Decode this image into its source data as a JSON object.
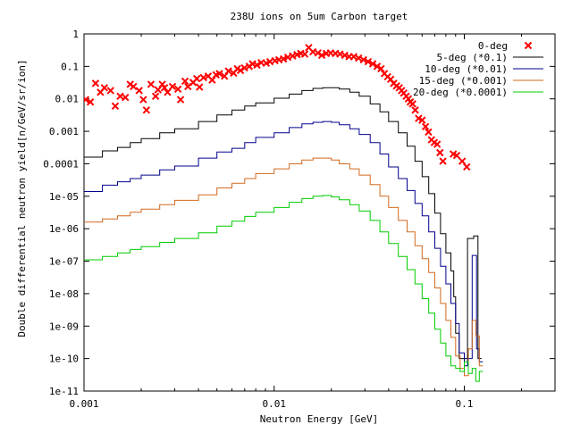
{
  "chart_data": {
    "type": "scatter+step",
    "title": "238U ions on 5um Carbon target",
    "xlabel": "Neutron Energy [GeV]",
    "ylabel": "Double differential neutron yield[n/GeV/sr/ion]",
    "x_scale": "log",
    "y_scale": "log",
    "xlim": [
      0.001,
      0.3
    ],
    "ylim": [
      1e-11,
      1
    ],
    "x_ticks": [
      {
        "value": 0.001,
        "label": "0.001"
      },
      {
        "value": 0.01,
        "label": "0.01"
      },
      {
        "value": 0.1,
        "label": "0.1"
      }
    ],
    "y_ticks": [
      {
        "value": 1,
        "label": "1"
      },
      {
        "value": 0.1,
        "label": "0.1"
      },
      {
        "value": 0.01,
        "label": "0.01"
      },
      {
        "value": 0.001,
        "label": "0.001"
      },
      {
        "value": 0.0001,
        "label": "0.0001"
      },
      {
        "value": 1e-05,
        "label": "1e-05"
      },
      {
        "value": 1e-06,
        "label": "1e-06"
      },
      {
        "value": 1e-07,
        "label": "1e-07"
      },
      {
        "value": 1e-08,
        "label": "1e-08"
      },
      {
        "value": 1e-09,
        "label": "1e-09"
      },
      {
        "value": 1e-10,
        "label": "1e-10"
      },
      {
        "value": 1e-11,
        "label": "1e-11"
      }
    ],
    "grid": false,
    "legend_position": "top-right",
    "series": [
      {
        "name": "0-deg",
        "kind": "points",
        "color": "#ff0000",
        "points": [
          [
            0.00102,
            0.0095
          ],
          [
            0.00108,
            0.008
          ],
          [
            0.00115,
            0.03
          ],
          [
            0.00122,
            0.016
          ],
          [
            0.00128,
            0.022
          ],
          [
            0.00138,
            0.018
          ],
          [
            0.00146,
            0.006
          ],
          [
            0.00155,
            0.012
          ],
          [
            0.00165,
            0.011
          ],
          [
            0.00175,
            0.028
          ],
          [
            0.00182,
            0.024
          ],
          [
            0.00195,
            0.018
          ],
          [
            0.00205,
            0.0095
          ],
          [
            0.00213,
            0.0045
          ],
          [
            0.00225,
            0.028
          ],
          [
            0.00238,
            0.012
          ],
          [
            0.00245,
            0.019
          ],
          [
            0.00258,
            0.028
          ],
          [
            0.00265,
            0.022
          ],
          [
            0.00275,
            0.016
          ],
          [
            0.00292,
            0.024
          ],
          [
            0.00312,
            0.02
          ],
          [
            0.00322,
            0.0095
          ],
          [
            0.0034,
            0.035
          ],
          [
            0.00352,
            0.024
          ],
          [
            0.00375,
            0.032
          ],
          [
            0.00392,
            0.042
          ],
          [
            0.00405,
            0.023
          ],
          [
            0.00425,
            0.045
          ],
          [
            0.0045,
            0.05
          ],
          [
            0.00472,
            0.038
          ],
          [
            0.00495,
            0.055
          ],
          [
            0.00515,
            0.06
          ],
          [
            0.00548,
            0.05
          ],
          [
            0.00575,
            0.072
          ],
          [
            0.00612,
            0.062
          ],
          [
            0.0064,
            0.085
          ],
          [
            0.00665,
            0.075
          ],
          [
            0.00698,
            0.09
          ],
          [
            0.0074,
            0.1
          ],
          [
            0.0077,
            0.12
          ],
          [
            0.00812,
            0.11
          ],
          [
            0.00855,
            0.13
          ],
          [
            0.00908,
            0.125
          ],
          [
            0.0095,
            0.14
          ],
          [
            0.0101,
            0.15
          ],
          [
            0.0106,
            0.16
          ],
          [
            0.0112,
            0.17
          ],
          [
            0.0118,
            0.19
          ],
          [
            0.0125,
            0.21
          ],
          [
            0.0132,
            0.23
          ],
          [
            0.0138,
            0.25
          ],
          [
            0.0145,
            0.24
          ],
          [
            0.0152,
            0.38
          ],
          [
            0.016,
            0.28
          ],
          [
            0.017,
            0.26
          ],
          [
            0.0178,
            0.22
          ],
          [
            0.0188,
            0.25
          ],
          [
            0.0198,
            0.26
          ],
          [
            0.021,
            0.25
          ],
          [
            0.0222,
            0.24
          ],
          [
            0.0235,
            0.22
          ],
          [
            0.0248,
            0.2
          ],
          [
            0.0262,
            0.2
          ],
          [
            0.0278,
            0.18
          ],
          [
            0.0295,
            0.16
          ],
          [
            0.0312,
            0.14
          ],
          [
            0.033,
            0.12
          ],
          [
            0.0348,
            0.1
          ],
          [
            0.0365,
            0.085
          ],
          [
            0.038,
            0.06
          ],
          [
            0.0395,
            0.048
          ],
          [
            0.041,
            0.04
          ],
          [
            0.0425,
            0.03
          ],
          [
            0.044,
            0.025
          ],
          [
            0.0455,
            0.022
          ],
          [
            0.0468,
            0.018
          ],
          [
            0.048,
            0.015
          ],
          [
            0.0495,
            0.012
          ],
          [
            0.0508,
            0.01
          ],
          [
            0.052,
            0.008
          ],
          [
            0.0535,
            0.007
          ],
          [
            0.0552,
            0.0045
          ],
          [
            0.0575,
            0.0025
          ],
          [
            0.06,
            0.0022
          ],
          [
            0.0625,
            0.0014
          ],
          [
            0.0648,
            0.00095
          ],
          [
            0.0672,
            0.00055
          ],
          [
            0.0695,
            0.00045
          ],
          [
            0.072,
            0.0004
          ],
          [
            0.0745,
            0.00022
          ],
          [
            0.0772,
            0.00012
          ],
          [
            0.0875,
            0.0002
          ],
          [
            0.0912,
            0.00018
          ],
          [
            0.0975,
            0.00012
          ],
          [
            0.103,
            8e-05
          ]
        ]
      },
      {
        "name": "5-deg (*0.1)",
        "kind": "step",
        "color": "#000000",
        "points": [
          [
            0.001,
            0.00016
          ],
          [
            0.00125,
            0.00025
          ],
          [
            0.0015,
            0.00032
          ],
          [
            0.00175,
            0.00045
          ],
          [
            0.002,
            0.0006
          ],
          [
            0.0025,
            0.0009
          ],
          [
            0.003,
            0.0012
          ],
          [
            0.004,
            0.002
          ],
          [
            0.005,
            0.0032
          ],
          [
            0.006,
            0.0045
          ],
          [
            0.007,
            0.006
          ],
          [
            0.008,
            0.0075
          ],
          [
            0.01,
            0.0105
          ],
          [
            0.012,
            0.014
          ],
          [
            0.014,
            0.018
          ],
          [
            0.016,
            0.021
          ],
          [
            0.018,
            0.022
          ],
          [
            0.02,
            0.022
          ],
          [
            0.022,
            0.02
          ],
          [
            0.025,
            0.016
          ],
          [
            0.028,
            0.012
          ],
          [
            0.032,
            0.007
          ],
          [
            0.036,
            0.004
          ],
          [
            0.04,
            0.002
          ],
          [
            0.045,
            0.0009
          ],
          [
            0.05,
            0.00035
          ],
          [
            0.055,
            0.00012
          ],
          [
            0.06,
            4e-05
          ],
          [
            0.065,
            1.2e-05
          ],
          [
            0.07,
            3e-06
          ],
          [
            0.075,
            7e-07
          ],
          [
            0.08,
            1.8e-07
          ],
          [
            0.085,
            5e-08
          ],
          [
            0.088,
            8e-09
          ],
          [
            0.09,
            6e-10
          ],
          [
            0.094,
            1e-10
          ],
          [
            0.1,
            1e-10
          ],
          [
            0.104,
            5e-07
          ],
          [
            0.112,
            6e-07
          ],
          [
            0.118,
            1e-10
          ]
        ]
      },
      {
        "name": "10-deg (*0.01)",
        "kind": "step",
        "color": "#00008b",
        "points": [
          [
            0.001,
            1.4e-05
          ],
          [
            0.00125,
            2.2e-05
          ],
          [
            0.0015,
            2.8e-05
          ],
          [
            0.00175,
            3.5e-05
          ],
          [
            0.002,
            4.5e-05
          ],
          [
            0.0025,
            6.5e-05
          ],
          [
            0.003,
            8.5e-05
          ],
          [
            0.004,
            0.00015
          ],
          [
            0.005,
            0.00023
          ],
          [
            0.006,
            0.0003
          ],
          [
            0.007,
            0.00045
          ],
          [
            0.008,
            0.00065
          ],
          [
            0.01,
            0.0009
          ],
          [
            0.012,
            0.0013
          ],
          [
            0.014,
            0.0017
          ],
          [
            0.016,
            0.0019
          ],
          [
            0.018,
            0.002
          ],
          [
            0.02,
            0.0019
          ],
          [
            0.022,
            0.0016
          ],
          [
            0.025,
            0.0012
          ],
          [
            0.028,
            0.0008
          ],
          [
            0.032,
            0.00045
          ],
          [
            0.036,
            0.0002
          ],
          [
            0.04,
            8e-05
          ],
          [
            0.045,
            3.5e-05
          ],
          [
            0.05,
            1.5e-05
          ],
          [
            0.055,
            6e-06
          ],
          [
            0.06,
            2.5e-06
          ],
          [
            0.065,
            8e-07
          ],
          [
            0.07,
            2.5e-07
          ],
          [
            0.075,
            7e-08
          ],
          [
            0.08,
            2e-08
          ],
          [
            0.085,
            5e-09
          ],
          [
            0.09,
            1.2e-09
          ],
          [
            0.094,
            1.5e-10
          ],
          [
            0.1,
            6e-11
          ],
          [
            0.104,
            1e-10
          ],
          [
            0.11,
            1.5e-07
          ],
          [
            0.116,
            2e-10
          ],
          [
            0.12,
            8e-11
          ]
        ]
      },
      {
        "name": "15-deg (*0.001)",
        "kind": "step",
        "color": "#d2691e",
        "points": [
          [
            0.001,
            1.6e-06
          ],
          [
            0.00125,
            2e-06
          ],
          [
            0.0015,
            2.5e-06
          ],
          [
            0.00175,
            3.2e-06
          ],
          [
            0.002,
            4e-06
          ],
          [
            0.0025,
            5.5e-06
          ],
          [
            0.003,
            7.5e-06
          ],
          [
            0.004,
            1.1e-05
          ],
          [
            0.005,
            1.8e-05
          ],
          [
            0.006,
            2.5e-05
          ],
          [
            0.007,
            3.5e-05
          ],
          [
            0.008,
            5e-05
          ],
          [
            0.01,
            7e-05
          ],
          [
            0.012,
            0.0001
          ],
          [
            0.014,
            0.00013
          ],
          [
            0.016,
            0.00015
          ],
          [
            0.018,
            0.00015
          ],
          [
            0.02,
            0.00013
          ],
          [
            0.022,
            0.0001
          ],
          [
            0.025,
            7e-05
          ],
          [
            0.028,
            4.5e-05
          ],
          [
            0.032,
            2.3e-05
          ],
          [
            0.036,
            1e-05
          ],
          [
            0.04,
            4.5e-06
          ],
          [
            0.045,
            1.8e-06
          ],
          [
            0.05,
            8e-07
          ],
          [
            0.055,
            3e-07
          ],
          [
            0.06,
            1.2e-07
          ],
          [
            0.065,
            4.5e-08
          ],
          [
            0.07,
            1.5e-08
          ],
          [
            0.075,
            5e-09
          ],
          [
            0.08,
            1.5e-09
          ],
          [
            0.085,
            4.5e-10
          ],
          [
            0.09,
            1.2e-10
          ],
          [
            0.095,
            5e-11
          ],
          [
            0.1,
            3e-11
          ],
          [
            0.105,
            2e-10
          ],
          [
            0.11,
            1.5e-09
          ],
          [
            0.115,
            5e-10
          ],
          [
            0.12,
            6e-11
          ]
        ]
      },
      {
        "name": "20-deg (*0.0001)",
        "kind": "step",
        "color": "#00cc00",
        "points": [
          [
            0.001,
            1.1e-07
          ],
          [
            0.00125,
            1.4e-07
          ],
          [
            0.0015,
            1.8e-07
          ],
          [
            0.00175,
            2.3e-07
          ],
          [
            0.002,
            2.8e-07
          ],
          [
            0.0025,
            3.8e-07
          ],
          [
            0.003,
            5e-07
          ],
          [
            0.004,
            7.5e-07
          ],
          [
            0.005,
            1.2e-06
          ],
          [
            0.006,
            1.7e-06
          ],
          [
            0.007,
            2.4e-06
          ],
          [
            0.008,
            3.2e-06
          ],
          [
            0.01,
            4.5e-06
          ],
          [
            0.012,
            6.5e-06
          ],
          [
            0.014,
            8.5e-06
          ],
          [
            0.016,
            1e-05
          ],
          [
            0.018,
            1.05e-05
          ],
          [
            0.02,
            9.5e-06
          ],
          [
            0.022,
            7.8e-06
          ],
          [
            0.025,
            5.5e-06
          ],
          [
            0.028,
            3.5e-06
          ],
          [
            0.032,
            1.8e-06
          ],
          [
            0.036,
            8e-07
          ],
          [
            0.04,
            3.5e-07
          ],
          [
            0.045,
            1.4e-07
          ],
          [
            0.05,
            5.5e-08
          ],
          [
            0.055,
            2e-08
          ],
          [
            0.06,
            7e-09
          ],
          [
            0.065,
            2.5e-09
          ],
          [
            0.07,
            8e-10
          ],
          [
            0.075,
            3e-10
          ],
          [
            0.08,
            1.2e-10
          ],
          [
            0.085,
            6e-11
          ],
          [
            0.09,
            5e-11
          ],
          [
            0.095,
            4e-11
          ],
          [
            0.1,
            8e-11
          ],
          [
            0.105,
            3.5e-11
          ],
          [
            0.11,
            5e-11
          ],
          [
            0.115,
            2e-11
          ],
          [
            0.12,
            4e-11
          ]
        ]
      }
    ]
  }
}
